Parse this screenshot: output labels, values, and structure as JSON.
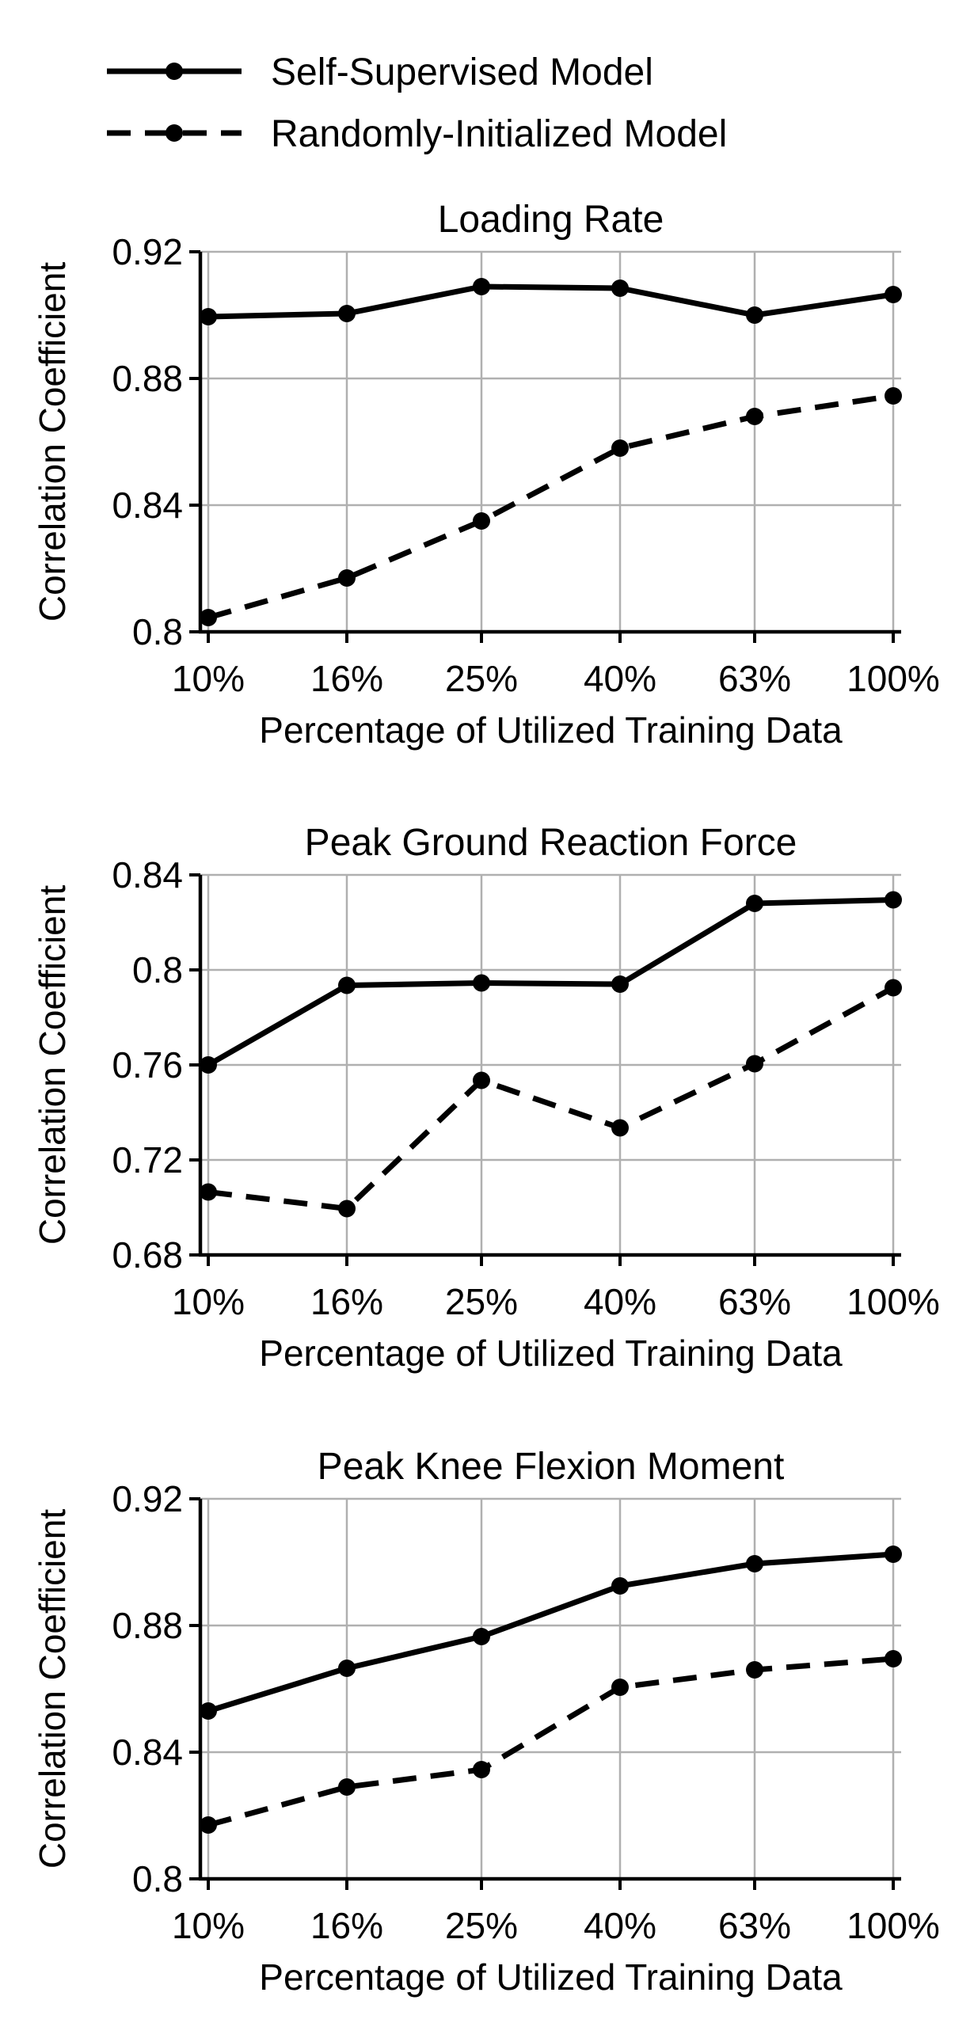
{
  "legend": {
    "position": "top-left",
    "items": [
      {
        "label": "Self-Supervised Model",
        "style": "solid"
      },
      {
        "label": "Randomly-Initialized Model",
        "style": "dashed"
      }
    ]
  },
  "chart_data": [
    {
      "type": "line",
      "title": "Loading Rate",
      "xlabel": "Percentage of Utilized Training Data",
      "ylabel": "Correlation Coefficient",
      "categories": [
        "10%",
        "16%",
        "25%",
        "40%",
        "63%",
        "100%"
      ],
      "ylim": [
        0.8,
        0.92
      ],
      "yticks": [
        "0.8",
        "0.84",
        "0.88",
        "0.92"
      ],
      "grid": true,
      "series": [
        {
          "name": "Self-Supervised Model",
          "style": "solid",
          "values": [
            0.8995,
            0.9005,
            0.909,
            0.9085,
            0.9,
            0.9065
          ]
        },
        {
          "name": "Randomly-Initialized Model",
          "style": "dashed",
          "values": [
            0.8045,
            0.817,
            0.835,
            0.858,
            0.868,
            0.8745
          ]
        }
      ]
    },
    {
      "type": "line",
      "title": "Peak Ground Reaction Force",
      "xlabel": "Percentage of Utilized Training Data",
      "ylabel": "Correlation Coefficient",
      "categories": [
        "10%",
        "16%",
        "25%",
        "40%",
        "63%",
        "100%"
      ],
      "ylim": [
        0.68,
        0.84
      ],
      "yticks": [
        "0.68",
        "0.72",
        "0.76",
        "0.8",
        "0.84"
      ],
      "grid": true,
      "series": [
        {
          "name": "Self-Supervised Model",
          "style": "solid",
          "values": [
            0.76,
            0.7935,
            0.7945,
            0.794,
            0.828,
            0.8295
          ]
        },
        {
          "name": "Randomly-Initialized Model",
          "style": "dashed",
          "values": [
            0.7065,
            0.6995,
            0.7535,
            0.7335,
            0.7605,
            0.7925
          ]
        }
      ]
    },
    {
      "type": "line",
      "title": "Peak Knee Flexion Moment",
      "xlabel": "Percentage of Utilized Training Data",
      "ylabel": "Correlation Coefficient",
      "categories": [
        "10%",
        "16%",
        "25%",
        "40%",
        "63%",
        "100%"
      ],
      "ylim": [
        0.8,
        0.92
      ],
      "yticks": [
        "0.8",
        "0.84",
        "0.88",
        "0.92"
      ],
      "grid": true,
      "series": [
        {
          "name": "Self-Supervised Model",
          "style": "solid",
          "values": [
            0.853,
            0.8665,
            0.8765,
            0.8925,
            0.8995,
            0.9025
          ]
        },
        {
          "name": "Randomly-Initialized Model",
          "style": "dashed",
          "values": [
            0.817,
            0.829,
            0.8345,
            0.8605,
            0.866,
            0.8695
          ]
        }
      ]
    }
  ]
}
